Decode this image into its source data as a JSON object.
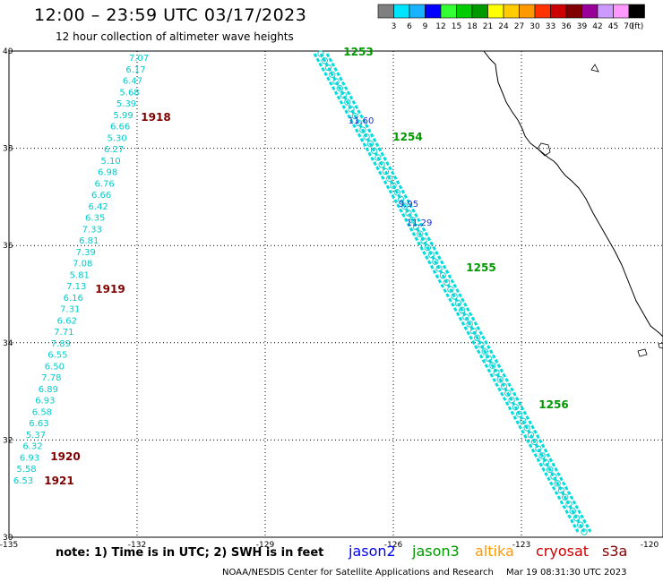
{
  "title": "12:00 – 23:59 UTC 03/17/2023",
  "subtitle": "12 hour collection of altimeter wave heights",
  "legend": {
    "unit": "(ft)",
    "items": [
      {
        "label": "3",
        "color": "#7f7f7f"
      },
      {
        "label": "6",
        "color": "#00e5ff"
      },
      {
        "label": "9",
        "color": "#19b2ff"
      },
      {
        "label": "12",
        "color": "#0000ff"
      },
      {
        "label": "15",
        "color": "#33ff33"
      },
      {
        "label": "18",
        "color": "#00cc00"
      },
      {
        "label": "21",
        "color": "#009900"
      },
      {
        "label": "24",
        "color": "#ffff00"
      },
      {
        "label": "27",
        "color": "#ffcc00"
      },
      {
        "label": "30",
        "color": "#ff9900"
      },
      {
        "label": "33",
        "color": "#ff3300"
      },
      {
        "label": "36",
        "color": "#cc0000"
      },
      {
        "label": "39",
        "color": "#800000"
      },
      {
        "label": "42",
        "color": "#990099"
      },
      {
        "label": "45",
        "color": "#cc99ff"
      },
      {
        "label": "70",
        "color": "#ff99ff"
      },
      {
        "label": "",
        "color": "#000000"
      }
    ]
  },
  "axes": {
    "x_ticks": [
      "-135",
      "-132",
      "-129",
      "-126",
      "-123",
      "-120"
    ],
    "y_ticks": [
      "40",
      "38",
      "36",
      "34",
      "32",
      "30"
    ]
  },
  "tracks": {
    "west": {
      "color": "#00cccc",
      "values": [
        "7.07",
        "6.17",
        "6.47",
        "5.68",
        "5.39",
        "5.99",
        "6.66",
        "5.30",
        "6.27",
        "5.10",
        "6.98",
        "6.76",
        "6.66",
        "6.42",
        "6.35",
        "7.33",
        "6.81",
        "7.39",
        "7.08",
        "5.81",
        "7.13",
        "6.16",
        "7.31",
        "6.62",
        "7.71",
        "7.89",
        "6.55",
        "6.50",
        "7.78",
        "6.89",
        "6.93",
        "6.58",
        "6.63",
        "5.37",
        "6.32",
        "6.93",
        "5.58",
        "6.53"
      ]
    },
    "time_labels": [
      {
        "text": "1918",
        "color": "#800000"
      },
      {
        "text": "1919",
        "color": "#800000"
      },
      {
        "text": "1920",
        "color": "#800000"
      },
      {
        "text": "1921",
        "color": "#800000"
      },
      {
        "text": "1253",
        "color": "#009900"
      },
      {
        "text": "1254",
        "color": "#009900"
      },
      {
        "text": "1255",
        "color": "#009900"
      },
      {
        "text": "1256",
        "color": "#009900"
      }
    ],
    "east_highlights": [
      "11.60",
      "9.95",
      "11.29"
    ]
  },
  "note": "note:  1) Time is in UTC;  2) SWH is in feet",
  "satellites": [
    {
      "name": "jason2",
      "color": "#0000ff"
    },
    {
      "name": "jason3",
      "color": "#009900"
    },
    {
      "name": "altika",
      "color": "#ff9900"
    },
    {
      "name": "cryosat",
      "color": "#cc0000"
    },
    {
      "name": "s3a",
      "color": "#800000"
    }
  ],
  "footer_left": "NOAA/NESDIS Center for Satellite Applications and Research",
  "footer_right": "Mar 19 08:31:30 UTC 2023"
}
